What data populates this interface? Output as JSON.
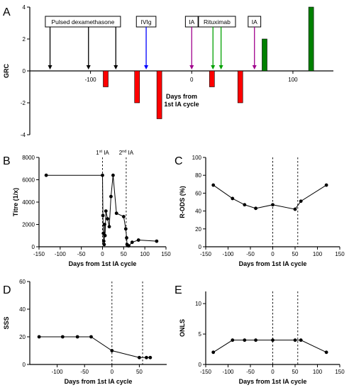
{
  "chart_data": [
    {
      "panel": "A",
      "type": "bar",
      "xlabel": "Days from 1st IA cycle",
      "ylabel": "GRC",
      "xlim": [
        -160,
        140
      ],
      "ylim": [
        -4,
        4
      ],
      "yticks": [
        -4,
        -2,
        0,
        2,
        4
      ],
      "xticks": [
        -100,
        0,
        100
      ],
      "bars": [
        {
          "x": -85,
          "value": -1,
          "color": "#ff0000"
        },
        {
          "x": -54,
          "value": -2,
          "color": "#ff0000"
        },
        {
          "x": -32,
          "value": -3,
          "color": "#ff0000"
        },
        {
          "x": 20,
          "value": -1,
          "color": "#ff0000"
        },
        {
          "x": 48,
          "value": -2,
          "color": "#ff0000"
        },
        {
          "x": 72,
          "value": 2,
          "color": "#008000"
        },
        {
          "x": 118,
          "value": 4,
          "color": "#008000"
        }
      ],
      "events": [
        {
          "label": "Pulsed dexamethasone",
          "x": [
            -140,
            -102,
            -75
          ],
          "color": "#000000"
        },
        {
          "label": "IVIg",
          "x": [
            -45
          ],
          "color": "#0000ff"
        },
        {
          "label": "IA",
          "x": [
            0
          ],
          "color": "#a0008c"
        },
        {
          "label": "Rituximab",
          "x": [
            21,
            29
          ],
          "color": "#00a000"
        },
        {
          "label": "IA",
          "x": [
            62
          ],
          "color": "#a0008c"
        }
      ]
    },
    {
      "panel": "B",
      "type": "line",
      "xlabel": "Days from 1st IA cycle",
      "ylabel": "Titre (1/x)",
      "xlim": [
        -150,
        150
      ],
      "ylim": [
        0,
        8000
      ],
      "xticks": [
        -150,
        -100,
        -50,
        0,
        50,
        100,
        150
      ],
      "yticks": [
        0,
        2000,
        4000,
        6000,
        8000
      ],
      "ref_lines": [
        {
          "x": 0,
          "label": "1st IA"
        },
        {
          "x": 56,
          "label": "2nd IA"
        }
      ],
      "x": [
        -133,
        0,
        1,
        2,
        3,
        4,
        5,
        6,
        8,
        12,
        16,
        20,
        25,
        33,
        50,
        55,
        57,
        58,
        60,
        62,
        70,
        85,
        128
      ],
      "y": [
        6400,
        6400,
        2800,
        1200,
        500,
        200,
        2000,
        1000,
        3200,
        2500,
        1800,
        4500,
        6400,
        3000,
        2700,
        1600,
        800,
        200,
        100,
        80,
        400,
        600,
        500
      ]
    },
    {
      "panel": "C",
      "type": "line",
      "xlabel": "Days from 1st IA cycle",
      "ylabel": "R-ODS (%)",
      "xlim": [
        -150,
        150
      ],
      "ylim": [
        0,
        100
      ],
      "xticks": [
        -150,
        -100,
        -50,
        0,
        50,
        100,
        150
      ],
      "yticks": [
        0,
        20,
        40,
        60,
        80,
        100
      ],
      "ref_lines": [
        {
          "x": 0
        },
        {
          "x": 56
        }
      ],
      "x": [
        -133,
        -90,
        -63,
        -38,
        0,
        50,
        63,
        120
      ],
      "y": [
        69,
        54,
        47,
        43,
        47,
        42,
        51,
        69
      ]
    },
    {
      "panel": "D",
      "type": "line",
      "xlabel": "Days from 1st IA cycle",
      "ylabel": "SSS",
      "xlim": [
        -150,
        100
      ],
      "ylim": [
        0,
        60
      ],
      "xticks": [
        -100,
        -50,
        0,
        50
      ],
      "yticks": [
        0,
        20,
        40,
        60
      ],
      "ref_lines": [
        {
          "x": 0
        },
        {
          "x": 56
        }
      ],
      "x": [
        -133,
        -90,
        -63,
        -38,
        0,
        50,
        63,
        70
      ],
      "y": [
        20,
        20,
        20,
        20,
        10,
        5,
        5,
        5
      ]
    },
    {
      "panel": "E",
      "type": "line",
      "xlabel": "Days from 1st IA cycle",
      "ylabel": "ONLS",
      "xlim": [
        -150,
        150
      ],
      "ylim": [
        0,
        12
      ],
      "xticks": [
        -150,
        -100,
        -50,
        0,
        50,
        100,
        150
      ],
      "yticks": [
        0,
        5,
        10
      ],
      "ref_lines": [
        {
          "x": 0
        },
        {
          "x": 56
        }
      ],
      "x": [
        -133,
        -90,
        -63,
        -38,
        0,
        50,
        63,
        120
      ],
      "y": [
        2,
        4,
        4,
        4,
        4,
        4,
        4,
        2
      ]
    }
  ]
}
